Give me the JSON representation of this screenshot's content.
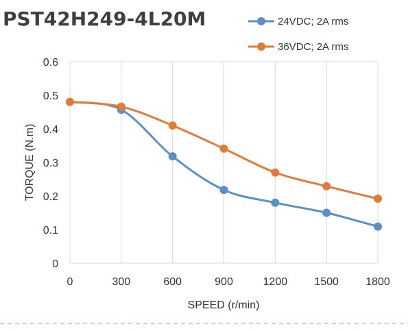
{
  "chart_data": {
    "type": "line",
    "title": "PST42H249-4L20M",
    "xlabel": "SPEED (r/min)",
    "ylabel": "TORQUE (N.m)",
    "x": [
      0,
      300,
      600,
      900,
      1200,
      1500,
      1800
    ],
    "x_tick_labels": [
      "0",
      "300",
      "600",
      "900",
      "1200",
      "1500",
      "1800"
    ],
    "xlim": [
      0,
      1800
    ],
    "ylim": [
      0,
      0.6
    ],
    "y_ticks": [
      0,
      0.1,
      0.2,
      0.3,
      0.4,
      0.5,
      0.6
    ],
    "y_tick_labels": [
      "0",
      "0.1",
      "0.2",
      "0.3",
      "0.4",
      "0.5",
      "0.6"
    ],
    "grid": "vertical",
    "legend_position": "top-right",
    "series": [
      {
        "name": "24VDC; 2A rms",
        "color": "#5b8fc9",
        "values": [
          0.48,
          0.457,
          0.318,
          0.218,
          0.18,
          0.15,
          0.109
        ]
      },
      {
        "name": "36VDC; 2A rms",
        "color": "#e07b39",
        "values": [
          0.48,
          0.466,
          0.41,
          0.341,
          0.27,
          0.229,
          0.192
        ]
      }
    ]
  }
}
